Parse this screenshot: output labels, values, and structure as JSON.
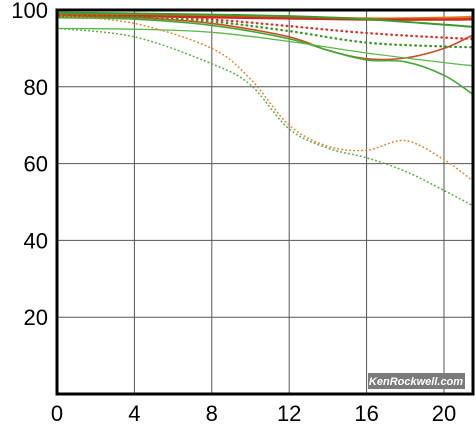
{
  "chart_data": {
    "type": "line",
    "title": "",
    "xlabel": "",
    "ylabel": "",
    "xlim": [
      0,
      21.5
    ],
    "ylim": [
      0,
      100
    ],
    "x_ticks": [
      0,
      4,
      8,
      12,
      16,
      20
    ],
    "y_ticks": [
      20,
      40,
      60,
      80,
      100
    ],
    "grid": true,
    "legend": "none",
    "watermark": "KenRockwell.com",
    "series": [
      {
        "color": "#e07a18",
        "style": "solid",
        "width": 2.2,
        "points": [
          [
            0,
            99
          ],
          [
            4,
            98.8
          ],
          [
            8,
            98.5
          ],
          [
            12,
            98.2
          ],
          [
            16,
            97.8
          ],
          [
            20,
            98
          ],
          [
            21.5,
            98.2
          ]
        ]
      },
      {
        "color": "#cf2a1e",
        "style": "solid",
        "width": 2.4,
        "points": [
          [
            0,
            98.6
          ],
          [
            4,
            98.4
          ],
          [
            8,
            98.1
          ],
          [
            12,
            97.8
          ],
          [
            16,
            97.5
          ],
          [
            20,
            97.5
          ],
          [
            21.5,
            97.6
          ]
        ]
      },
      {
        "color": "#3a9a2a",
        "style": "solid",
        "width": 2,
        "points": [
          [
            0,
            99.3
          ],
          [
            4,
            99.1
          ],
          [
            8,
            98.8
          ],
          [
            12,
            98.4
          ],
          [
            16,
            97.6
          ],
          [
            20,
            96.2
          ],
          [
            21.5,
            95.6
          ]
        ]
      },
      {
        "color": "#d44a22",
        "style": "solid",
        "width": 1.6,
        "points": [
          [
            0,
            98.2
          ],
          [
            4,
            98
          ],
          [
            8,
            96.5
          ],
          [
            12,
            93
          ],
          [
            14,
            89.5
          ],
          [
            16,
            87.3
          ],
          [
            18,
            87.5
          ],
          [
            20,
            90
          ],
          [
            21.5,
            93.5
          ]
        ]
      },
      {
        "color": "#44a836",
        "style": "solid",
        "width": 1.6,
        "points": [
          [
            0,
            98
          ],
          [
            4,
            97.6
          ],
          [
            8,
            96
          ],
          [
            12,
            92.5
          ],
          [
            14,
            89.5
          ],
          [
            16,
            87
          ],
          [
            18,
            86.5
          ],
          [
            20,
            83
          ],
          [
            21.5,
            78
          ]
        ]
      },
      {
        "color": "#5bb84a",
        "style": "solid",
        "width": 1.3,
        "points": [
          [
            0,
            95.2
          ],
          [
            4,
            95
          ],
          [
            8,
            94.2
          ],
          [
            12,
            91.8
          ],
          [
            16,
            88.8
          ],
          [
            20,
            86.3
          ],
          [
            21.5,
            85.5
          ]
        ]
      },
      {
        "color": "#d8372a",
        "style": "dotted",
        "width": 2.4,
        "points": [
          [
            0,
            98.5
          ],
          [
            4,
            98.2
          ],
          [
            8,
            97.5
          ],
          [
            12,
            95.8
          ],
          [
            16,
            94
          ],
          [
            20,
            92.8
          ],
          [
            21.5,
            92.5
          ]
        ]
      },
      {
        "color": "#3a9a2a",
        "style": "dotted",
        "width": 2.4,
        "points": [
          [
            0,
            98.5
          ],
          [
            4,
            98.2
          ],
          [
            8,
            97
          ],
          [
            12,
            94.5
          ],
          [
            16,
            91.5
          ],
          [
            20,
            90.5
          ],
          [
            21.5,
            90.3
          ]
        ]
      },
      {
        "color": "#e8862e",
        "style": "dotted",
        "width": 1.6,
        "points": [
          [
            0,
            98.5
          ],
          [
            4,
            96.5
          ],
          [
            8,
            90
          ],
          [
            10,
            82
          ],
          [
            12,
            70
          ],
          [
            14,
            64.5
          ],
          [
            16,
            63.5
          ],
          [
            18,
            66
          ],
          [
            20,
            61
          ],
          [
            21.5,
            55.5
          ]
        ]
      },
      {
        "color": "#56b044",
        "style": "dotted",
        "width": 1.6,
        "points": [
          [
            0,
            95.2
          ],
          [
            4,
            93
          ],
          [
            8,
            86
          ],
          [
            10,
            80.5
          ],
          [
            12,
            69
          ],
          [
            14,
            64
          ],
          [
            16,
            61.5
          ],
          [
            18,
            58
          ],
          [
            20,
            53
          ],
          [
            21.5,
            49
          ]
        ]
      }
    ]
  }
}
